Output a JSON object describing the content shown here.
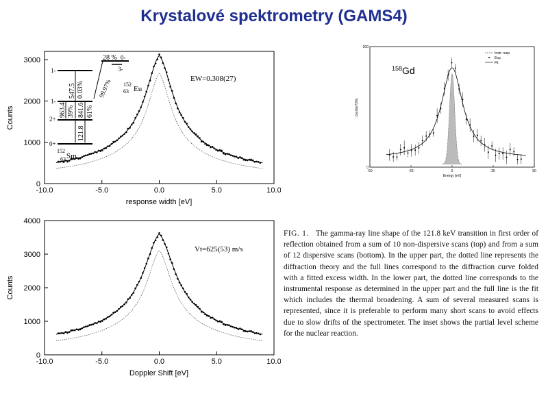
{
  "slide": {
    "title": "Krystalové spektrometry (GAMS4)"
  },
  "caption": {
    "fig_label": "FIG. 1.",
    "text": "The gamma-ray line shape of the 121.8 keV transition in first order of reflection obtained from a sum of 10 non-dispersive scans (top) and from a sum of 12 dispersive scans (bottom). In the upper part, the dotted line represents the diffraction theory and the full lines correspond to the diffraction curve folded with a fitted excess width. In the lower part, the dotted line corresponds to the instrumental response as determined in the upper part and the full line is the fit which includes the thermal broadening. A sum of several measured scans is represented, since it is preferable to perform many short scans to avoid effects due to slow drifts of the spectrometer. The inset shows the partial level scheme for the nuclear reaction."
  },
  "inset_scheme": {
    "levels": [
      {
        "spin": "1-",
        "y": 3000
      },
      {
        "spin": "1-",
        "y": 2000
      },
      {
        "spin": "2+",
        "y": 1750
      },
      {
        "spin": "0+",
        "y": 1000
      }
    ],
    "right_levels": [
      {
        "label": "28 %",
        "spin": "0-"
      },
      {
        "spin": "3-"
      }
    ],
    "branch_label": "99.97%",
    "eu": {
      "mass": "152",
      "z": "63",
      "sym": "Eu"
    },
    "sm": {
      "mass": "152",
      "z": "62",
      "sym": "Sm"
    },
    "transitions": [
      {
        "energy": "963.4",
        "pct": "39%"
      },
      {
        "energy": "547.5",
        "pct": "0.03%"
      },
      {
        "energy": "841.6",
        "pct": "61%"
      },
      {
        "energy": "121.8",
        "pct": ""
      }
    ]
  },
  "chart_data": [
    {
      "type": "line",
      "xlabel": "response width [eV]",
      "ylabel": "Counts",
      "xlim": [
        -10,
        10
      ],
      "ylim": [
        0,
        3200
      ],
      "xticks": [
        "-10.0",
        "-5.0",
        "0.0",
        "5.0",
        "10.0"
      ],
      "yticks": [
        "0",
        "1000",
        "2000",
        "3000"
      ],
      "annotation": "EW=0.308(27)",
      "peak": {
        "x": 0,
        "y": 3100
      },
      "baseline": 300,
      "series": [
        {
          "style": "data-points",
          "gamma": 1.4
        },
        {
          "style": "full-line",
          "gamma": 1.4
        },
        {
          "style": "dotted-line",
          "gamma": 1.2
        }
      ]
    },
    {
      "type": "line",
      "xlabel": "Doppler Shift [eV]",
      "ylabel": "Counts",
      "xlim": [
        -10,
        10
      ],
      "ylim": [
        0,
        4000
      ],
      "xticks": [
        "-10.0",
        "-5.0",
        "0.0",
        "5.0",
        "10.0"
      ],
      "yticks": [
        "0",
        "1000",
        "2000",
        "3000",
        "4000"
      ],
      "annotation": "Vt=625(53) m/s",
      "peak": {
        "x": 0,
        "y": 3600
      },
      "baseline": 300,
      "series": [
        {
          "style": "data-points",
          "gamma": 1.6
        },
        {
          "style": "full-line",
          "gamma": 1.6
        },
        {
          "style": "dotted-line",
          "gamma": 1.3
        }
      ]
    },
    {
      "type": "line",
      "annotation": "158Gd",
      "xlabel": "Energy [eV]",
      "ylabel": "counts/720s",
      "xlim": [
        -50,
        50
      ],
      "ylim": [
        0,
        200
      ],
      "xticks": [
        "-50",
        "-25",
        "0",
        "25",
        "50"
      ],
      "yticks": [
        "0",
        "200"
      ],
      "legend": [
        "Instr. resp.",
        "Exp.",
        "Fit"
      ],
      "legend_position": "top-right",
      "peak": {
        "x": 0,
        "y": 165
      },
      "baseline": 15
    }
  ]
}
